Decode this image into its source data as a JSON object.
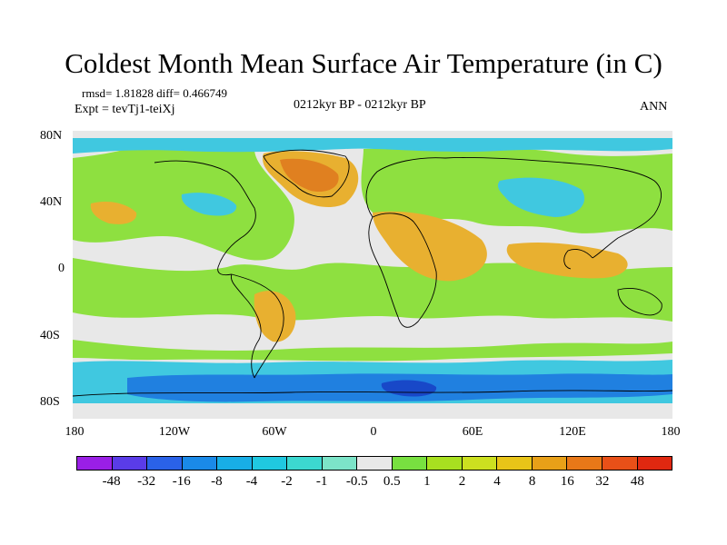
{
  "title": "Coldest Month Mean Surface Air Temperature (in C)",
  "stats": {
    "rmsd_diff": "rmsd= 1.81828 diff= 0.466749",
    "experiment": "Expt = tevTj1-teiXj"
  },
  "period": "0212kyr BP - 0212kyr BP",
  "season": "ANN",
  "y_ticks": [
    "80N",
    "40N",
    "0",
    "40S",
    "80S"
  ],
  "x_ticks": [
    "180",
    "120W",
    "60W",
    "0",
    "60E",
    "120E",
    "180"
  ],
  "colorbar": {
    "colors": [
      "#9a1fe6",
      "#5a3ce8",
      "#2a62e8",
      "#1a8ae8",
      "#18aee6",
      "#20c8e0",
      "#3cd8d0",
      "#7ce4c8",
      "#e8e8e8",
      "#78e040",
      "#a8e020",
      "#cce020",
      "#e8c418",
      "#e8a018",
      "#e87818",
      "#e85018",
      "#e02810"
    ],
    "labels": [
      "-48",
      "-32",
      "-16",
      "-8",
      "-4",
      "-2",
      "-1",
      "-0.5",
      "0.5",
      "1",
      "2",
      "4",
      "8",
      "16",
      "32",
      "48"
    ]
  },
  "colors": {
    "neutral": "#e8e8e8",
    "ocean_pos": "#8ee040",
    "warm": "#e8b030",
    "hot": "#e08020",
    "cool": "#40c8e0",
    "cold": "#2080e0"
  }
}
